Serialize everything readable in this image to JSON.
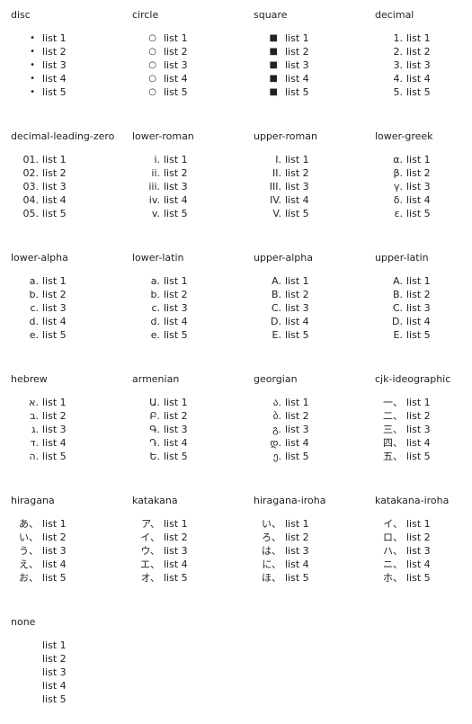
{
  "item_labels": [
    "list 1",
    "list 2",
    "list 3",
    "list 4",
    "list 5"
  ],
  "blocks": [
    {
      "title": "disc",
      "markers": [
        "•",
        "•",
        "•",
        "•",
        "•"
      ]
    },
    {
      "title": "circle",
      "markers": [
        "○",
        "○",
        "○",
        "○",
        "○"
      ]
    },
    {
      "title": "square",
      "markers": [
        "■",
        "■",
        "■",
        "■",
        "■"
      ]
    },
    {
      "title": "decimal",
      "markers": [
        "1.",
        "2.",
        "3.",
        "4.",
        "5."
      ]
    },
    {
      "title": "decimal-leading-zero",
      "markers": [
        "01.",
        "02.",
        "03.",
        "04.",
        "05."
      ]
    },
    {
      "title": "lower-roman",
      "markers": [
        "i.",
        "ii.",
        "iii.",
        "iv.",
        "v."
      ]
    },
    {
      "title": "upper-roman",
      "markers": [
        "I.",
        "II.",
        "III.",
        "IV.",
        "V."
      ]
    },
    {
      "title": "lower-greek",
      "markers": [
        "α.",
        "β.",
        "γ.",
        "δ.",
        "ε."
      ]
    },
    {
      "title": "lower-alpha",
      "markers": [
        "a.",
        "b.",
        "c.",
        "d.",
        "e."
      ]
    },
    {
      "title": "lower-latin",
      "markers": [
        "a.",
        "b.",
        "c.",
        "d.",
        "e."
      ]
    },
    {
      "title": "upper-alpha",
      "markers": [
        "A.",
        "B.",
        "C.",
        "D.",
        "E."
      ]
    },
    {
      "title": "upper-latin",
      "markers": [
        "A.",
        "B.",
        "C.",
        "D.",
        "E."
      ]
    },
    {
      "title": "hebrew",
      "markers": [
        "א.",
        "ב.",
        "ג.",
        "ד.",
        "ה."
      ]
    },
    {
      "title": "armenian",
      "markers": [
        "Ա.",
        "Բ.",
        "Գ.",
        "Դ.",
        "Ե."
      ]
    },
    {
      "title": "georgian",
      "markers": [
        "ა.",
        "ბ.",
        "გ.",
        "დ.",
        "ე."
      ]
    },
    {
      "title": "cjk-ideographic",
      "markers": [
        "一、",
        "二、",
        "三、",
        "四、",
        "五、"
      ]
    },
    {
      "title": "hiragana",
      "markers": [
        "あ、",
        "い、",
        "う、",
        "え、",
        "お、"
      ]
    },
    {
      "title": "katakana",
      "markers": [
        "ア、",
        "イ、",
        "ウ、",
        "エ、",
        "オ、"
      ]
    },
    {
      "title": "hiragana-iroha",
      "markers": [
        "い、",
        "ろ、",
        "は、",
        "に、",
        "ほ、"
      ]
    },
    {
      "title": "katakana-iroha",
      "markers": [
        "イ、",
        "ロ、",
        "ハ、",
        "ニ、",
        "ホ、"
      ]
    },
    {
      "title": "none",
      "markers": [
        "",
        "",
        "",
        "",
        ""
      ]
    }
  ]
}
